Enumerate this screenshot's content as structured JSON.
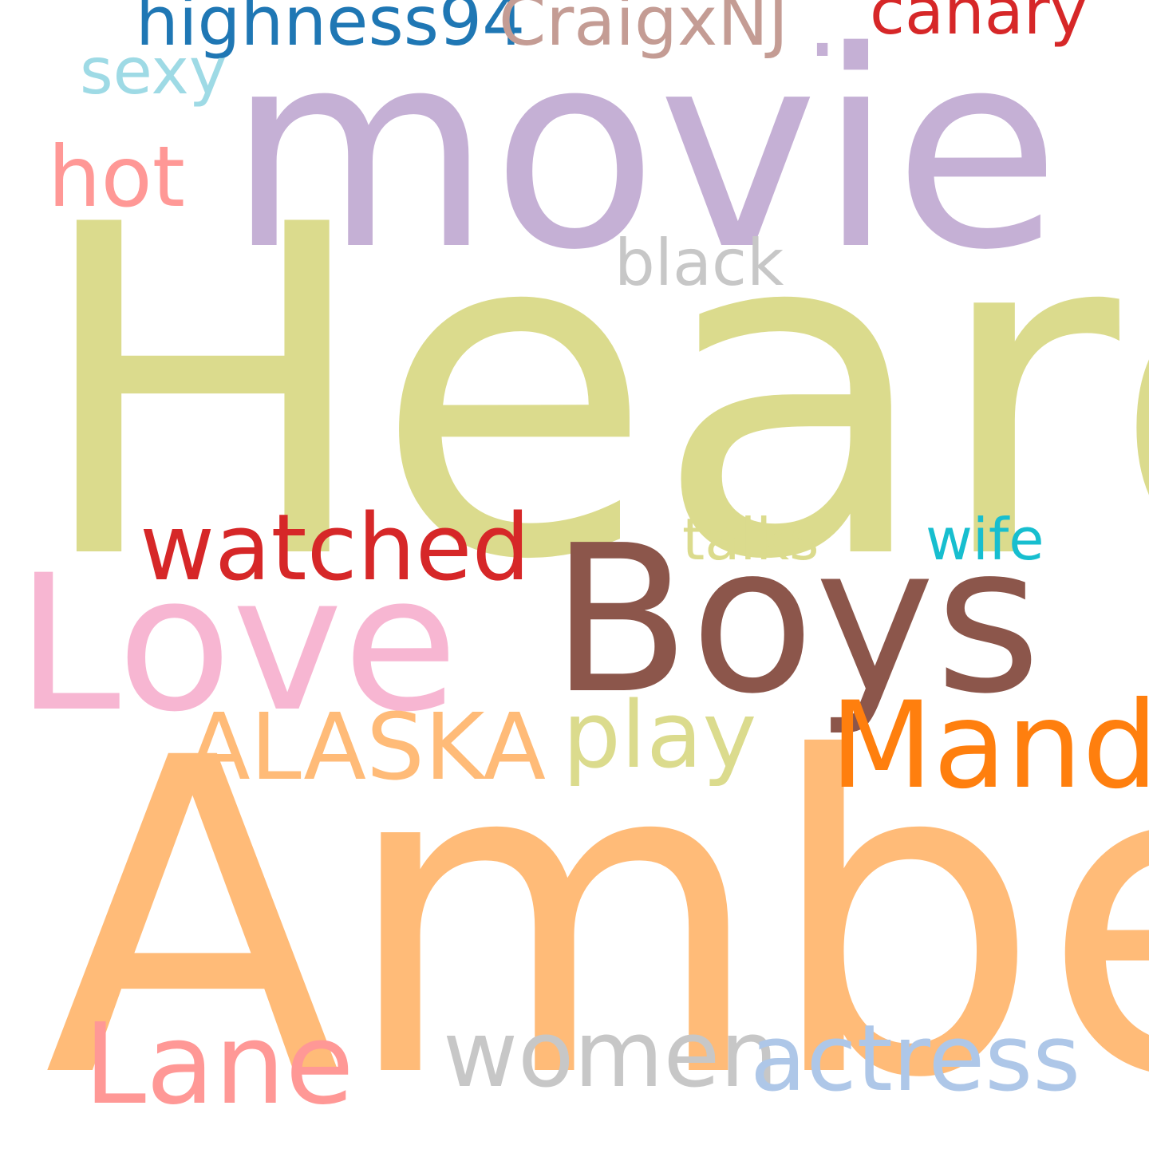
{
  "words": {
    "heard": {
      "text": "Heard",
      "color": "#dbdb8d"
    },
    "amber": {
      "text": "Amber",
      "color": "#ffbb78"
    },
    "movie": {
      "text": "movie",
      "color": "#c5b0d5"
    },
    "boys": {
      "text": "Boys",
      "color": "#8c564b"
    },
    "love": {
      "text": "Love",
      "color": "#f7b6d2"
    },
    "mandy": {
      "text": "Mandy",
      "color": "#ff7f0e"
    },
    "lane": {
      "text": "Lane",
      "color": "#ff9896"
    },
    "alaska": {
      "text": "ALASKA",
      "color": "#ffbb78"
    },
    "play": {
      "text": "play",
      "color": "#dbdb8d"
    },
    "women": {
      "text": "women",
      "color": "#c7c7c7"
    },
    "actress": {
      "text": "actress",
      "color": "#aec7e8"
    },
    "watched": {
      "text": "watched",
      "color": "#d62728"
    },
    "hot": {
      "text": "hot",
      "color": "#ff9896"
    },
    "highness": {
      "text": "highness94",
      "color": "#1f77b4"
    },
    "craig": {
      "text": "CraigxNJ",
      "color": "#c49c94"
    },
    "canary": {
      "text": "canary",
      "color": "#d62728"
    },
    "dot": {
      "text": ".",
      "color": "#c5b0d5"
    },
    "sexy": {
      "text": "sexy",
      "color": "#9edae5"
    },
    "black": {
      "text": "black",
      "color": "#c7c7c7"
    },
    "talks": {
      "text": "talks",
      "color": "#dbdb8d"
    },
    "wife": {
      "text": "wife",
      "color": "#17becf"
    }
  }
}
